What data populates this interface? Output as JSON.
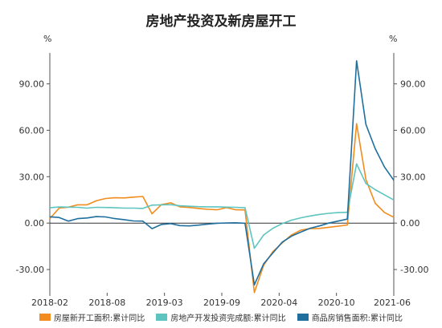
{
  "chart_data": {
    "type": "line",
    "title": "房地产投资及新房屋开工",
    "y_unit_left": "%",
    "y_unit_right": "%",
    "ylim": [
      -45,
      110
    ],
    "yticks": [
      90,
      60,
      30,
      0,
      -30
    ],
    "ytick_labels": [
      "90.00",
      "60.00",
      "30.00",
      "0.00",
      "-30.00"
    ],
    "xtick_labels": [
      "2018-02",
      "2018-08",
      "2019-03",
      "2019-09",
      "2020-04",
      "2020-10",
      "2021-06"
    ],
    "x": [
      "2018-02",
      "2018-03",
      "2018-04",
      "2018-05",
      "2018-06",
      "2018-07",
      "2018-08",
      "2018-09",
      "2018-10",
      "2018-11",
      "2018-12",
      "2019-02",
      "2019-03",
      "2019-04",
      "2019-05",
      "2019-06",
      "2019-07",
      "2019-08",
      "2019-09",
      "2019-10",
      "2019-11",
      "2019-12",
      "2020-02",
      "2020-03",
      "2020-04",
      "2020-05",
      "2020-06",
      "2020-07",
      "2020-08",
      "2020-09",
      "2020-10",
      "2020-11",
      "2020-12",
      "2021-02",
      "2021-03",
      "2021-04",
      "2021-05",
      "2021-06"
    ],
    "series": [
      {
        "name": "房屋新开工面积:累计同比",
        "color": "#f28c1e",
        "values": [
          2.9,
          9.7,
          10.3,
          11.8,
          11.8,
          14.4,
          15.9,
          16.4,
          16.3,
          16.8,
          17.2,
          6.0,
          11.9,
          13.1,
          10.5,
          10.1,
          9.5,
          8.9,
          8.6,
          10.0,
          8.6,
          8.5,
          -44.9,
          -27.2,
          -18.4,
          -12.8,
          -7.6,
          -4.5,
          -3.6,
          -3.4,
          -2.7,
          -2.0,
          -1.2,
          64.3,
          28.2,
          12.8,
          6.9,
          3.8
        ]
      },
      {
        "name": "房地产开发投资完成额:累计同比",
        "color": "#5dc4c0",
        "values": [
          9.9,
          10.4,
          10.3,
          10.2,
          9.7,
          10.2,
          10.1,
          9.9,
          9.7,
          9.7,
          9.5,
          11.6,
          11.8,
          11.9,
          11.2,
          10.9,
          10.6,
          10.5,
          10.5,
          10.3,
          10.2,
          9.9,
          -16.3,
          -7.7,
          -3.3,
          -0.3,
          1.9,
          3.4,
          4.6,
          5.6,
          6.3,
          6.8,
          7.0,
          38.3,
          25.6,
          21.6,
          18.3,
          15.0
        ]
      },
      {
        "name": "商品房销售面积:累计同比",
        "color": "#1f6f9e",
        "values": [
          4.1,
          3.6,
          1.3,
          2.9,
          3.3,
          4.2,
          4.0,
          2.9,
          2.2,
          1.4,
          1.3,
          -3.6,
          -0.9,
          -0.3,
          -1.6,
          -1.8,
          -1.3,
          -0.6,
          -0.1,
          0.1,
          0.2,
          -0.1,
          -39.9,
          -26.3,
          -19.3,
          -12.3,
          -8.4,
          -5.8,
          -3.3,
          -1.8,
          0.0,
          1.3,
          2.6,
          104.9,
          63.8,
          48.1,
          36.3,
          27.7
        ]
      }
    ],
    "grid": false,
    "legend_position": "bottom"
  }
}
